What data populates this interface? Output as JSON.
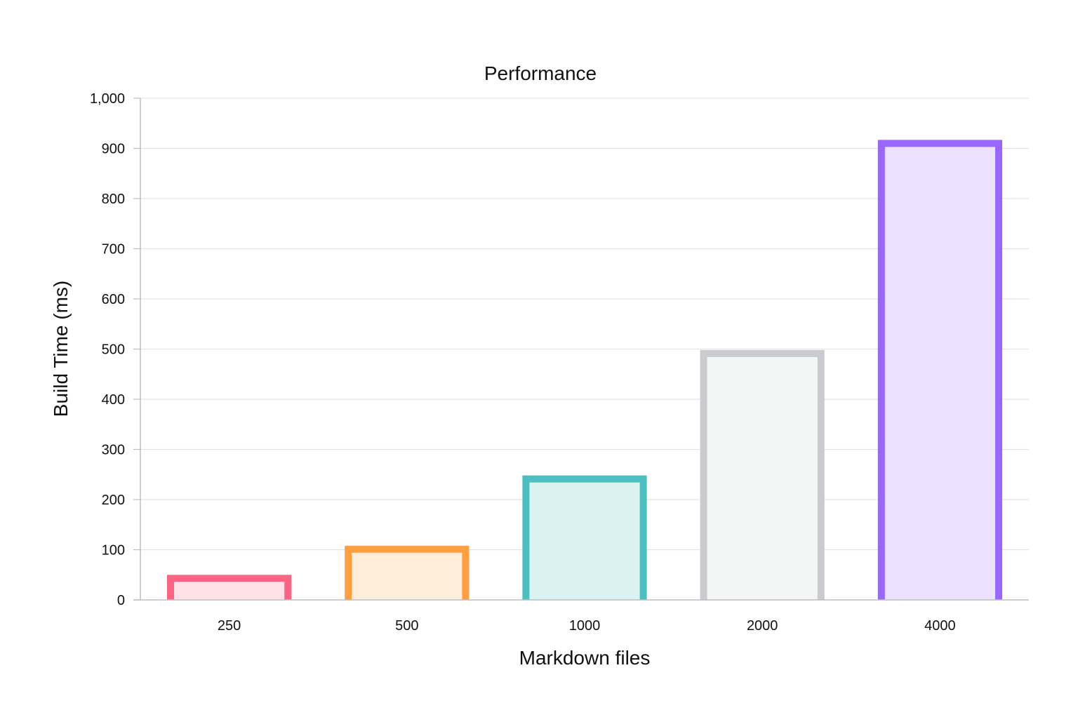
{
  "chart_data": {
    "type": "bar",
    "title": "Performance",
    "xlabel": "Markdown files",
    "ylabel": "Build Time (ms)",
    "categories": [
      "250",
      "500",
      "1000",
      "2000",
      "4000"
    ],
    "values": [
      50,
      108,
      248,
      498,
      917
    ],
    "ylim": [
      0,
      1000
    ],
    "yticks": [
      "0",
      "100",
      "200",
      "300",
      "400",
      "500",
      "600",
      "700",
      "800",
      "900",
      "1,000"
    ],
    "ytick_values": [
      0,
      100,
      200,
      300,
      400,
      500,
      600,
      700,
      800,
      900,
      1000
    ],
    "grid": true,
    "legend": "none",
    "colors": [
      {
        "stroke": "#ff6384",
        "fill": "#ffe0e6"
      },
      {
        "stroke": "#ff9f40",
        "fill": "#ffecd9"
      },
      {
        "stroke": "#4bc0c0",
        "fill": "#dbf2f2"
      },
      {
        "stroke": "#c9cbcf",
        "fill": "#f4f5f5"
      },
      {
        "stroke": "#9966ff",
        "fill": "#ebe0ff"
      }
    ]
  }
}
